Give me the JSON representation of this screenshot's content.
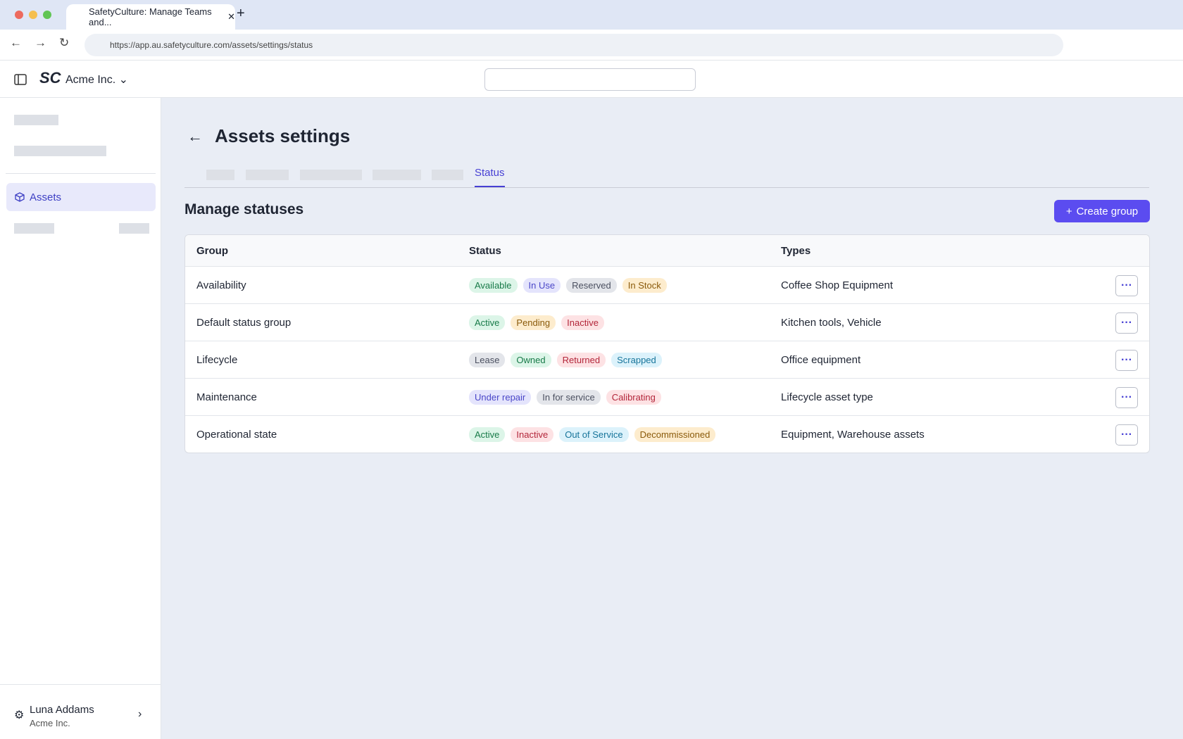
{
  "browser": {
    "tab_title": "SafetyCulture: Manage Teams and...",
    "url": "https://app.au.safetyculture.com/assets/settings/status"
  },
  "header": {
    "org_name": "Acme Inc."
  },
  "sidebar": {
    "nav_item": "Assets",
    "user_name": "Luna Addams",
    "user_org": "Acme Inc."
  },
  "page": {
    "title": "Assets settings",
    "active_tab": "Status",
    "section_title": "Manage statuses",
    "button": "Create group"
  },
  "table": {
    "columns": [
      "Group",
      "Status",
      "Types"
    ],
    "rows": [
      {
        "group": "Availability",
        "statuses": [
          {
            "label": "Available",
            "color": "green"
          },
          {
            "label": "In Use",
            "color": "purple"
          },
          {
            "label": "Reserved",
            "color": "gray"
          },
          {
            "label": "In Stock",
            "color": "orange"
          }
        ],
        "types": "Coffee Shop Equipment"
      },
      {
        "group": "Default status group",
        "statuses": [
          {
            "label": "Active",
            "color": "green"
          },
          {
            "label": "Pending",
            "color": "orange"
          },
          {
            "label": "Inactive",
            "color": "red"
          }
        ],
        "types": "Kitchen tools, Vehicle"
      },
      {
        "group": "Lifecycle",
        "statuses": [
          {
            "label": "Lease",
            "color": "gray"
          },
          {
            "label": "Owned",
            "color": "green"
          },
          {
            "label": "Returned",
            "color": "red"
          },
          {
            "label": "Scrapped",
            "color": "blue"
          }
        ],
        "types": "Office equipment"
      },
      {
        "group": "Maintenance",
        "statuses": [
          {
            "label": "Under repair",
            "color": "purple"
          },
          {
            "label": "In for service",
            "color": "gray"
          },
          {
            "label": "Calibrating",
            "color": "red"
          }
        ],
        "types": "Lifecycle asset type"
      },
      {
        "group": "Operational state",
        "statuses": [
          {
            "label": "Active",
            "color": "green"
          },
          {
            "label": "Inactive",
            "color": "red"
          },
          {
            "label": "Out of Service",
            "color": "blue"
          },
          {
            "label": "Decommissioned",
            "color": "orange"
          }
        ],
        "types": "Equipment, Warehouse assets"
      }
    ]
  }
}
